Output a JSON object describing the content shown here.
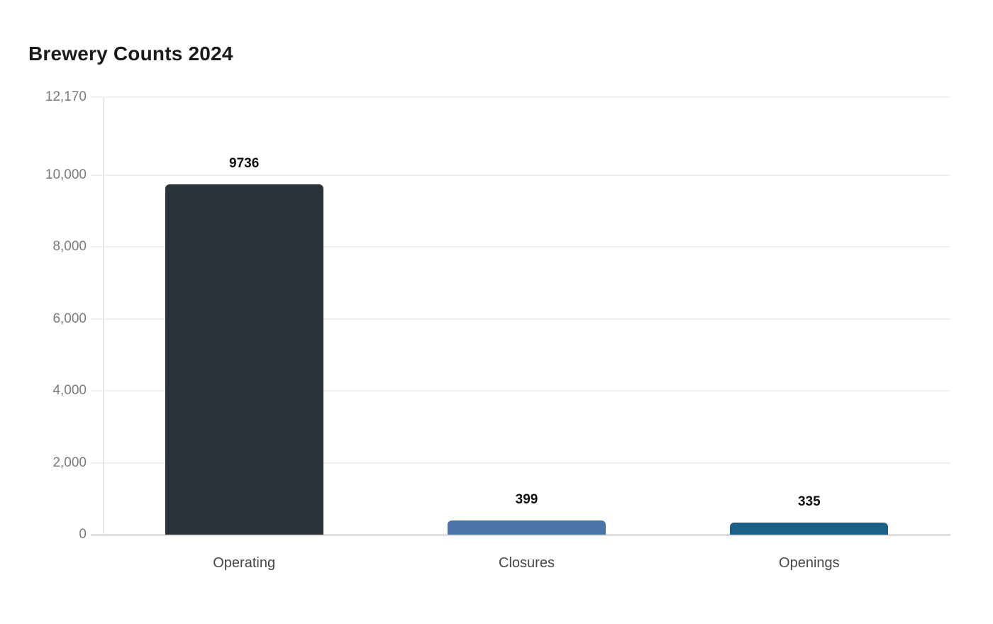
{
  "page": {
    "background": "#ffffff"
  },
  "chart_data": {
    "type": "bar",
    "title": "Brewery Counts 2024",
    "categories": [
      "Operating",
      "Closures",
      "Openings"
    ],
    "values": [
      9736,
      399,
      335
    ],
    "data_labels": [
      "9736",
      "399",
      "335"
    ],
    "bar_colors": [
      "#2c3338",
      "#4c73a8",
      "#1c6087"
    ],
    "ylim": [
      0,
      12170
    ],
    "y_ticks": [
      0,
      2000,
      4000,
      6000,
      8000,
      10000,
      12170
    ],
    "y_tick_labels": [
      "0",
      "2,000",
      "4,000",
      "6,000",
      "8,000",
      "10,000",
      "12,170"
    ],
    "xlabel": "",
    "ylabel": "",
    "grid": true,
    "legend_position": "none",
    "colors": {
      "title": "#1b1b1b",
      "tick_label": "#7b7b7b",
      "category_label": "#474747",
      "value_label": "#0f0f0f",
      "gridline": "#f0f0f0",
      "baseline": "#dedede",
      "axis_line": "#e6e6e6"
    }
  }
}
